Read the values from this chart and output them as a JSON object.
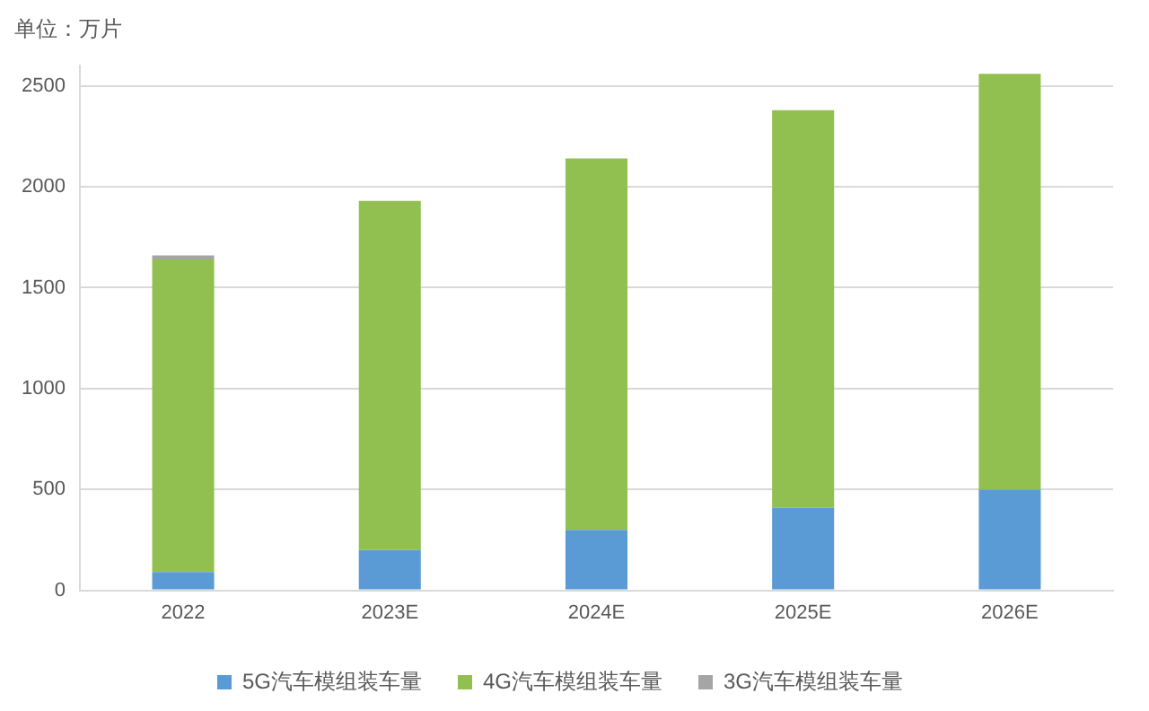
{
  "chart_data": {
    "type": "bar",
    "stacked": true,
    "ylabel": "单位：万片",
    "categories": [
      "2022",
      "2023E",
      "2024E",
      "2025E",
      "2026E"
    ],
    "series": [
      {
        "name": "5G汽车模组装车量",
        "color": "#5b9bd5",
        "values": [
          90,
          200,
          300,
          410,
          500
        ]
      },
      {
        "name": "4G汽车模组装车量",
        "color": "#92c050",
        "values": [
          1550,
          1730,
          1840,
          1970,
          2060
        ]
      },
      {
        "name": "3G汽车模组装车量",
        "color": "#a5a5a5",
        "values": [
          20,
          0,
          0,
          0,
          0
        ]
      }
    ],
    "ylim": [
      0,
      2600
    ],
    "yticks": [
      0,
      500,
      1000,
      1500,
      2000,
      2500
    ],
    "grid": "y",
    "legend": "bottom"
  }
}
